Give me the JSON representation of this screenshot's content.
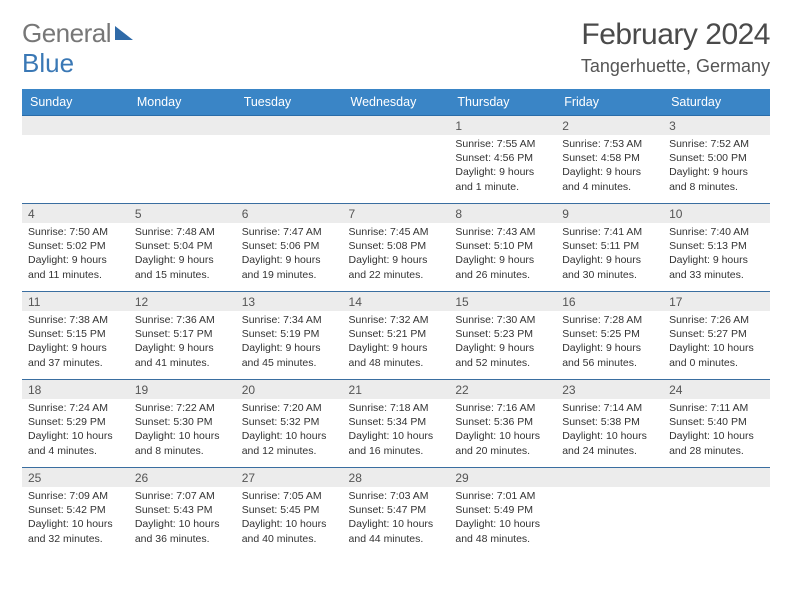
{
  "logo": {
    "part1": "General",
    "part2": "Blue"
  },
  "title": {
    "month": "February 2024",
    "location": "Tangerhuette, Germany"
  },
  "style": {
    "header_bg": "#3a85c6",
    "header_fg": "#ffffff",
    "row_divider": "#3a6ea0",
    "daynum_bg": "#ececec",
    "text_color": "#333333",
    "page_bg": "#ffffff",
    "font_family": "Arial",
    "title_fontsize": 30,
    "loc_fontsize": 18,
    "th_fontsize": 12.5,
    "cell_fontsize": 10.5
  },
  "weekdays": [
    "Sunday",
    "Monday",
    "Tuesday",
    "Wednesday",
    "Thursday",
    "Friday",
    "Saturday"
  ],
  "grid": [
    [
      null,
      null,
      null,
      null,
      {
        "n": "1",
        "sr": "Sunrise: 7:55 AM",
        "ss": "Sunset: 4:56 PM",
        "d1": "Daylight: 9 hours",
        "d2": "and 1 minute."
      },
      {
        "n": "2",
        "sr": "Sunrise: 7:53 AM",
        "ss": "Sunset: 4:58 PM",
        "d1": "Daylight: 9 hours",
        "d2": "and 4 minutes."
      },
      {
        "n": "3",
        "sr": "Sunrise: 7:52 AM",
        "ss": "Sunset: 5:00 PM",
        "d1": "Daylight: 9 hours",
        "d2": "and 8 minutes."
      }
    ],
    [
      {
        "n": "4",
        "sr": "Sunrise: 7:50 AM",
        "ss": "Sunset: 5:02 PM",
        "d1": "Daylight: 9 hours",
        "d2": "and 11 minutes."
      },
      {
        "n": "5",
        "sr": "Sunrise: 7:48 AM",
        "ss": "Sunset: 5:04 PM",
        "d1": "Daylight: 9 hours",
        "d2": "and 15 minutes."
      },
      {
        "n": "6",
        "sr": "Sunrise: 7:47 AM",
        "ss": "Sunset: 5:06 PM",
        "d1": "Daylight: 9 hours",
        "d2": "and 19 minutes."
      },
      {
        "n": "7",
        "sr": "Sunrise: 7:45 AM",
        "ss": "Sunset: 5:08 PM",
        "d1": "Daylight: 9 hours",
        "d2": "and 22 minutes."
      },
      {
        "n": "8",
        "sr": "Sunrise: 7:43 AM",
        "ss": "Sunset: 5:10 PM",
        "d1": "Daylight: 9 hours",
        "d2": "and 26 minutes."
      },
      {
        "n": "9",
        "sr": "Sunrise: 7:41 AM",
        "ss": "Sunset: 5:11 PM",
        "d1": "Daylight: 9 hours",
        "d2": "and 30 minutes."
      },
      {
        "n": "10",
        "sr": "Sunrise: 7:40 AM",
        "ss": "Sunset: 5:13 PM",
        "d1": "Daylight: 9 hours",
        "d2": "and 33 minutes."
      }
    ],
    [
      {
        "n": "11",
        "sr": "Sunrise: 7:38 AM",
        "ss": "Sunset: 5:15 PM",
        "d1": "Daylight: 9 hours",
        "d2": "and 37 minutes."
      },
      {
        "n": "12",
        "sr": "Sunrise: 7:36 AM",
        "ss": "Sunset: 5:17 PM",
        "d1": "Daylight: 9 hours",
        "d2": "and 41 minutes."
      },
      {
        "n": "13",
        "sr": "Sunrise: 7:34 AM",
        "ss": "Sunset: 5:19 PM",
        "d1": "Daylight: 9 hours",
        "d2": "and 45 minutes."
      },
      {
        "n": "14",
        "sr": "Sunrise: 7:32 AM",
        "ss": "Sunset: 5:21 PM",
        "d1": "Daylight: 9 hours",
        "d2": "and 48 minutes."
      },
      {
        "n": "15",
        "sr": "Sunrise: 7:30 AM",
        "ss": "Sunset: 5:23 PM",
        "d1": "Daylight: 9 hours",
        "d2": "and 52 minutes."
      },
      {
        "n": "16",
        "sr": "Sunrise: 7:28 AM",
        "ss": "Sunset: 5:25 PM",
        "d1": "Daylight: 9 hours",
        "d2": "and 56 minutes."
      },
      {
        "n": "17",
        "sr": "Sunrise: 7:26 AM",
        "ss": "Sunset: 5:27 PM",
        "d1": "Daylight: 10 hours",
        "d2": "and 0 minutes."
      }
    ],
    [
      {
        "n": "18",
        "sr": "Sunrise: 7:24 AM",
        "ss": "Sunset: 5:29 PM",
        "d1": "Daylight: 10 hours",
        "d2": "and 4 minutes."
      },
      {
        "n": "19",
        "sr": "Sunrise: 7:22 AM",
        "ss": "Sunset: 5:30 PM",
        "d1": "Daylight: 10 hours",
        "d2": "and 8 minutes."
      },
      {
        "n": "20",
        "sr": "Sunrise: 7:20 AM",
        "ss": "Sunset: 5:32 PM",
        "d1": "Daylight: 10 hours",
        "d2": "and 12 minutes."
      },
      {
        "n": "21",
        "sr": "Sunrise: 7:18 AM",
        "ss": "Sunset: 5:34 PM",
        "d1": "Daylight: 10 hours",
        "d2": "and 16 minutes."
      },
      {
        "n": "22",
        "sr": "Sunrise: 7:16 AM",
        "ss": "Sunset: 5:36 PM",
        "d1": "Daylight: 10 hours",
        "d2": "and 20 minutes."
      },
      {
        "n": "23",
        "sr": "Sunrise: 7:14 AM",
        "ss": "Sunset: 5:38 PM",
        "d1": "Daylight: 10 hours",
        "d2": "and 24 minutes."
      },
      {
        "n": "24",
        "sr": "Sunrise: 7:11 AM",
        "ss": "Sunset: 5:40 PM",
        "d1": "Daylight: 10 hours",
        "d2": "and 28 minutes."
      }
    ],
    [
      {
        "n": "25",
        "sr": "Sunrise: 7:09 AM",
        "ss": "Sunset: 5:42 PM",
        "d1": "Daylight: 10 hours",
        "d2": "and 32 minutes."
      },
      {
        "n": "26",
        "sr": "Sunrise: 7:07 AM",
        "ss": "Sunset: 5:43 PM",
        "d1": "Daylight: 10 hours",
        "d2": "and 36 minutes."
      },
      {
        "n": "27",
        "sr": "Sunrise: 7:05 AM",
        "ss": "Sunset: 5:45 PM",
        "d1": "Daylight: 10 hours",
        "d2": "and 40 minutes."
      },
      {
        "n": "28",
        "sr": "Sunrise: 7:03 AM",
        "ss": "Sunset: 5:47 PM",
        "d1": "Daylight: 10 hours",
        "d2": "and 44 minutes."
      },
      {
        "n": "29",
        "sr": "Sunrise: 7:01 AM",
        "ss": "Sunset: 5:49 PM",
        "d1": "Daylight: 10 hours",
        "d2": "and 48 minutes."
      },
      null,
      null
    ]
  ]
}
